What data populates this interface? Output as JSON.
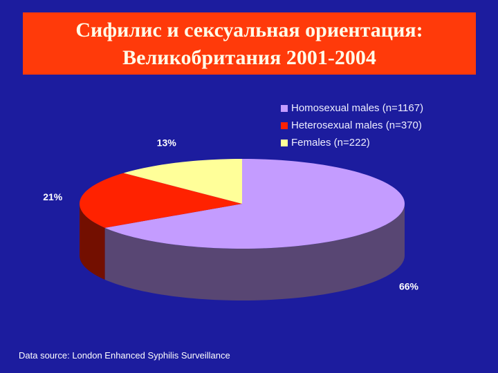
{
  "chart_data": {
    "type": "pie3d",
    "title_lines": [
      "Сифилис и сексуальная ориентация:",
      "Великобритания 2001-2004"
    ],
    "series": [
      {
        "name": "Homosexual males (n=1167)",
        "color": "#c49cff",
        "values": [
          66
        ],
        "value_labels": [
          "66%"
        ]
      },
      {
        "name": "Heterosexual males (n=370)",
        "color": "#ff2200",
        "values": [
          21
        ],
        "value_labels": [
          "21%"
        ]
      },
      {
        "name": "Females (n=222)",
        "color": "#ffff99",
        "values": [
          13
        ],
        "value_labels": [
          "13%"
        ]
      }
    ],
    "legend": "top-right",
    "source": "Data source: London Enhanced Syphilis Surveillance"
  }
}
